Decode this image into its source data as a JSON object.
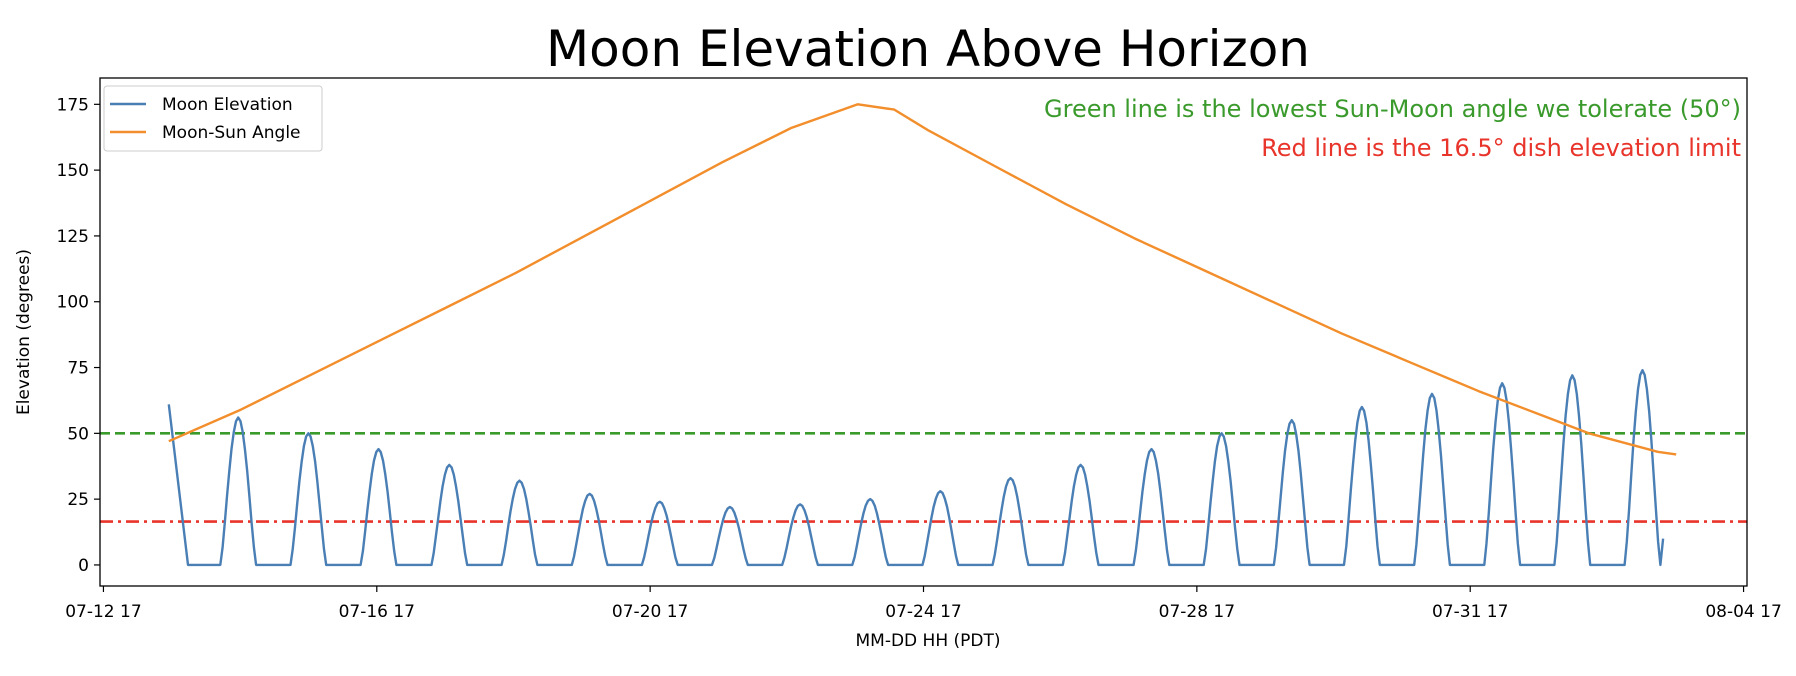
{
  "chart_data": {
    "type": "line",
    "title": "Moon Elevation Above Horizon",
    "xlabel": "MM-DD HH (PDT)",
    "ylabel": "Elevation (degrees)",
    "x_ticks": [
      "07-12 17",
      "07-16 17",
      "07-20 17",
      "07-24 17",
      "07-28 17",
      "07-31 17",
      "08-04 17"
    ],
    "y_ticks": [
      0,
      25,
      50,
      75,
      100,
      125,
      150,
      175
    ],
    "xlim": [
      -0.05,
      23.9
    ],
    "ylim": [
      -8,
      185
    ],
    "grid": false,
    "legend_position": "upper-left",
    "reference_lines": [
      {
        "y": 50,
        "color": "#3a9a2c",
        "style": "dashed"
      },
      {
        "y": 16.5,
        "color": "#e8342a",
        "style": "dash-dot"
      }
    ],
    "annotations": [
      {
        "text": "Green line is the lowest Sun-Moon angle we tolerate (50°)",
        "color": "#3a9a2c"
      },
      {
        "text": "Red line is the 16.5° dish elevation limit",
        "color": "#e8342a"
      }
    ],
    "series": [
      {
        "name": "Moon Elevation",
        "color": "#4a7fb5",
        "peaks": [
          {
            "x": 1.96,
            "y": 56
          },
          {
            "x": 2.98,
            "y": 50
          },
          {
            "x": 4.0,
            "y": 44
          },
          {
            "x": 5.03,
            "y": 38
          },
          {
            "x": 6.05,
            "y": 32
          },
          {
            "x": 7.07,
            "y": 27
          },
          {
            "x": 8.09,
            "y": 24
          },
          {
            "x": 9.11,
            "y": 22
          },
          {
            "x": 10.13,
            "y": 23
          },
          {
            "x": 11.15,
            "y": 25
          },
          {
            "x": 12.17,
            "y": 28
          },
          {
            "x": 13.19,
            "y": 33
          },
          {
            "x": 14.21,
            "y": 38
          },
          {
            "x": 15.24,
            "y": 44
          },
          {
            "x": 16.26,
            "y": 50
          },
          {
            "x": 17.28,
            "y": 55
          },
          {
            "x": 18.3,
            "y": 60
          },
          {
            "x": 19.32,
            "y": 65
          },
          {
            "x": 20.34,
            "y": 69
          },
          {
            "x": 21.36,
            "y": 72
          },
          {
            "x": 22.38,
            "y": 74
          }
        ],
        "start": {
          "x": 0.95,
          "y": 61
        },
        "end": {
          "x": 22.68,
          "y": 10
        }
      },
      {
        "name": "Moon-Sun Angle",
        "color": "#f28e2b",
        "points": [
          [
            0.95,
            47
          ],
          [
            2.0,
            59
          ],
          [
            3.0,
            72
          ],
          [
            4.0,
            85
          ],
          [
            5.0,
            98
          ],
          [
            6.0,
            111
          ],
          [
            7.0,
            125
          ],
          [
            8.0,
            139
          ],
          [
            9.0,
            153
          ],
          [
            10.0,
            166
          ],
          [
            10.97,
            175
          ],
          [
            11.5,
            173
          ],
          [
            12.0,
            165
          ],
          [
            13.0,
            151
          ],
          [
            14.0,
            137
          ],
          [
            15.0,
            124
          ],
          [
            16.0,
            112
          ],
          [
            17.0,
            100
          ],
          [
            18.0,
            88
          ],
          [
            19.0,
            77
          ],
          [
            20.0,
            66
          ],
          [
            21.0,
            56
          ],
          [
            21.6,
            50
          ],
          [
            22.6,
            43
          ],
          [
            22.87,
            42
          ]
        ]
      }
    ]
  }
}
